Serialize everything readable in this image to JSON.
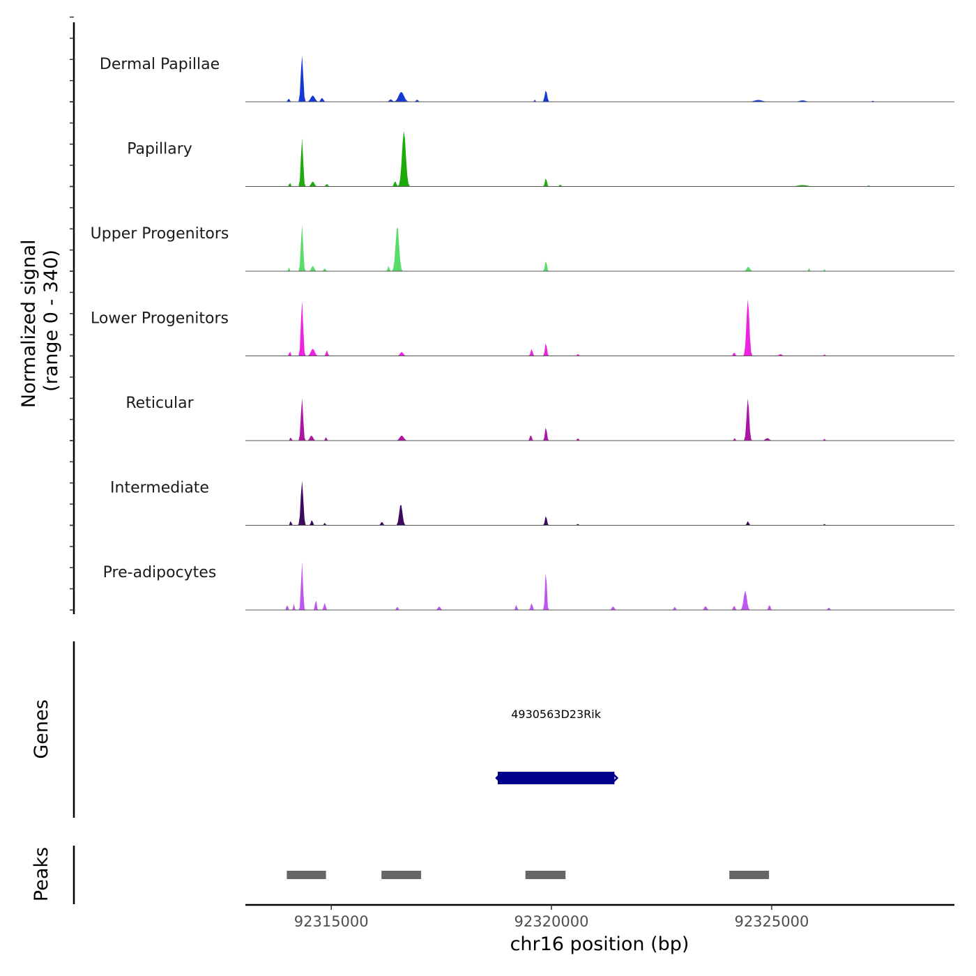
{
  "chart_data": {
    "type": "area",
    "title": "",
    "ylabel_line1": "Normalized signal",
    "ylabel_line2": "(range 0 - 340)",
    "xlabel": "chr16 position (bp)",
    "xlim": [
      92313050,
      92329150
    ],
    "ylim": [
      0,
      340
    ],
    "x_ticks": [
      92315000,
      92320000,
      92325000
    ],
    "x_tick_labels": [
      "92315000",
      "92320000",
      "92325000"
    ],
    "series": [
      {
        "name": "Dermal Papillae",
        "color": "#1538d6",
        "peaks": [
          {
            "center": 92314335,
            "width": 75,
            "height": 260
          },
          {
            "center": 92314580,
            "width": 130,
            "height": 35
          },
          {
            "center": 92314790,
            "width": 80,
            "height": 22
          },
          {
            "center": 92314035,
            "width": 60,
            "height": 18
          },
          {
            "center": 92316590,
            "width": 170,
            "height": 55
          },
          {
            "center": 92316350,
            "width": 90,
            "height": 14
          },
          {
            "center": 92316950,
            "width": 70,
            "height": 12
          },
          {
            "center": 92319875,
            "width": 75,
            "height": 65
          },
          {
            "center": 92319620,
            "width": 40,
            "height": 12
          },
          {
            "center": 92324700,
            "width": 250,
            "height": 10
          },
          {
            "center": 92325700,
            "width": 200,
            "height": 8
          },
          {
            "center": 92327300,
            "width": 60,
            "height": 6
          }
        ]
      },
      {
        "name": "Papillary",
        "color": "#1cab0b",
        "peaks": [
          {
            "center": 92314335,
            "width": 70,
            "height": 270
          },
          {
            "center": 92316650,
            "width": 120,
            "height": 310
          },
          {
            "center": 92316450,
            "width": 70,
            "height": 30
          },
          {
            "center": 92314060,
            "width": 40,
            "height": 25
          },
          {
            "center": 92314580,
            "width": 100,
            "height": 28
          },
          {
            "center": 92314900,
            "width": 70,
            "height": 14
          },
          {
            "center": 92319875,
            "width": 60,
            "height": 48
          },
          {
            "center": 92320200,
            "width": 60,
            "height": 10
          },
          {
            "center": 92325700,
            "width": 300,
            "height": 8
          },
          {
            "center": 92327200,
            "width": 60,
            "height": 6
          }
        ]
      },
      {
        "name": "Upper Progenitors",
        "color": "#58dd69",
        "peaks": [
          {
            "center": 92314335,
            "width": 70,
            "height": 260
          },
          {
            "center": 92316500,
            "width": 110,
            "height": 255
          },
          {
            "center": 92316300,
            "width": 50,
            "height": 30
          },
          {
            "center": 92314040,
            "width": 40,
            "height": 22
          },
          {
            "center": 92314580,
            "width": 90,
            "height": 30
          },
          {
            "center": 92314850,
            "width": 60,
            "height": 16
          },
          {
            "center": 92319875,
            "width": 60,
            "height": 60
          },
          {
            "center": 92324470,
            "width": 100,
            "height": 25
          },
          {
            "center": 92325850,
            "width": 40,
            "height": 18
          },
          {
            "center": 92326200,
            "width": 40,
            "height": 12
          }
        ]
      },
      {
        "name": "Lower Progenitors",
        "color": "#ee22e3",
        "peaks": [
          {
            "center": 92314335,
            "width": 70,
            "height": 310
          },
          {
            "center": 92314060,
            "width": 40,
            "height": 30
          },
          {
            "center": 92314580,
            "width": 120,
            "height": 40
          },
          {
            "center": 92314900,
            "width": 60,
            "height": 32
          },
          {
            "center": 92316600,
            "width": 100,
            "height": 22
          },
          {
            "center": 92319875,
            "width": 60,
            "height": 75
          },
          {
            "center": 92319550,
            "width": 60,
            "height": 40
          },
          {
            "center": 92320600,
            "width": 50,
            "height": 12
          },
          {
            "center": 92324460,
            "width": 90,
            "height": 320
          },
          {
            "center": 92324150,
            "width": 60,
            "height": 20
          },
          {
            "center": 92325200,
            "width": 100,
            "height": 10
          },
          {
            "center": 92326200,
            "width": 60,
            "height": 8
          }
        ]
      },
      {
        "name": "Reticular",
        "color": "#ad13a5",
        "peaks": [
          {
            "center": 92314335,
            "width": 70,
            "height": 240
          },
          {
            "center": 92314080,
            "width": 40,
            "height": 22
          },
          {
            "center": 92314550,
            "width": 100,
            "height": 28
          },
          {
            "center": 92314880,
            "width": 50,
            "height": 20
          },
          {
            "center": 92316600,
            "width": 130,
            "height": 28
          },
          {
            "center": 92319875,
            "width": 60,
            "height": 78
          },
          {
            "center": 92319530,
            "width": 60,
            "height": 32
          },
          {
            "center": 92320600,
            "width": 50,
            "height": 14
          },
          {
            "center": 92324460,
            "width": 80,
            "height": 240
          },
          {
            "center": 92324160,
            "width": 50,
            "height": 14
          },
          {
            "center": 92324900,
            "width": 120,
            "height": 14
          },
          {
            "center": 92326200,
            "width": 50,
            "height": 10
          }
        ]
      },
      {
        "name": "Intermediate",
        "color": "#3d0a5e",
        "peaks": [
          {
            "center": 92314335,
            "width": 80,
            "height": 250
          },
          {
            "center": 92314080,
            "width": 40,
            "height": 30
          },
          {
            "center": 92314560,
            "width": 60,
            "height": 30
          },
          {
            "center": 92314850,
            "width": 50,
            "height": 14
          },
          {
            "center": 92316580,
            "width": 100,
            "height": 120
          },
          {
            "center": 92316150,
            "width": 70,
            "height": 20
          },
          {
            "center": 92319875,
            "width": 60,
            "height": 55
          },
          {
            "center": 92320600,
            "width": 40,
            "height": 10
          },
          {
            "center": 92324460,
            "width": 60,
            "height": 24
          },
          {
            "center": 92326200,
            "width": 50,
            "height": 8
          }
        ]
      },
      {
        "name": "Pre-adipocytes",
        "color": "#be56f1",
        "peaks": [
          {
            "center": 92314335,
            "width": 60,
            "height": 270
          },
          {
            "center": 92314000,
            "width": 50,
            "height": 30
          },
          {
            "center": 92314150,
            "width": 40,
            "height": 35
          },
          {
            "center": 92314650,
            "width": 50,
            "height": 60
          },
          {
            "center": 92314850,
            "width": 60,
            "height": 40
          },
          {
            "center": 92316500,
            "width": 60,
            "height": 18
          },
          {
            "center": 92317450,
            "width": 80,
            "height": 20
          },
          {
            "center": 92319875,
            "width": 55,
            "height": 230
          },
          {
            "center": 92319550,
            "width": 60,
            "height": 40
          },
          {
            "center": 92319200,
            "width": 50,
            "height": 30
          },
          {
            "center": 92321400,
            "width": 80,
            "height": 20
          },
          {
            "center": 92322800,
            "width": 60,
            "height": 18
          },
          {
            "center": 92323500,
            "width": 80,
            "height": 22
          },
          {
            "center": 92324400,
            "width": 100,
            "height": 110
          },
          {
            "center": 92324150,
            "width": 60,
            "height": 25
          },
          {
            "center": 92324950,
            "width": 60,
            "height": 30
          },
          {
            "center": 92326300,
            "width": 60,
            "height": 14
          }
        ]
      }
    ],
    "genes_track_label": "Genes",
    "genes": [
      {
        "name": "4930563D23Rik",
        "start": 92318780,
        "end": 92321430,
        "color": "#00008b"
      }
    ],
    "peaks_track_label": "Peaks",
    "peak_regions": [
      {
        "start": 92313990,
        "end": 92314880
      },
      {
        "start": 92316140,
        "end": 92317040
      },
      {
        "start": 92319410,
        "end": 92320320
      },
      {
        "start": 92324040,
        "end": 92324940
      }
    ],
    "peak_region_color": "#666666"
  }
}
